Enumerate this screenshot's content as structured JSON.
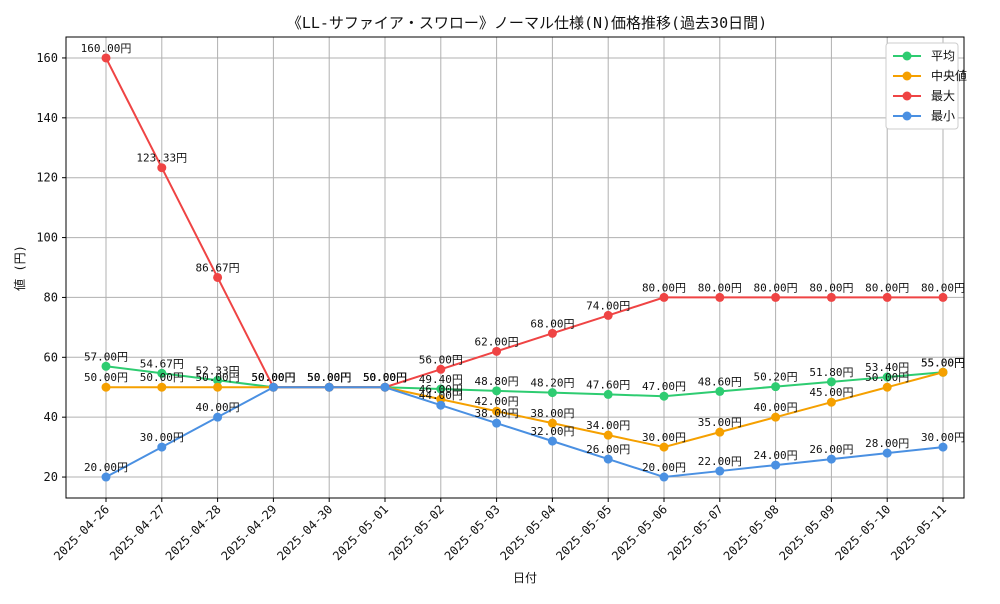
{
  "chart_data": {
    "type": "line",
    "title": "《LL-サファイア・スワロー》ノーマル仕様(N)価格推移(過去30日間)",
    "xlabel": "日付",
    "ylabel": "値 (円)",
    "ylim": [
      13,
      167
    ],
    "yticks": [
      20,
      40,
      60,
      80,
      100,
      120,
      140,
      160
    ],
    "grid": true,
    "legend_position": "top-right",
    "value_suffix": "円",
    "categories": [
      "2025-04-26",
      "2025-04-27",
      "2025-04-28",
      "2025-04-29",
      "2025-04-30",
      "2025-05-01",
      "2025-05-02",
      "2025-05-03",
      "2025-05-04",
      "2025-05-05",
      "2025-05-06",
      "2025-05-07",
      "2025-05-08",
      "2025-05-09",
      "2025-05-10",
      "2025-05-11"
    ],
    "series": [
      {
        "name": "平均",
        "color": "#2ecc71",
        "values": [
          57.0,
          54.67,
          52.33,
          50.0,
          50.0,
          50.0,
          49.4,
          48.8,
          48.2,
          47.6,
          47.0,
          48.6,
          50.2,
          51.8,
          53.4,
          55.0
        ]
      },
      {
        "name": "中央値",
        "color": "#f5a000",
        "values": [
          50.0,
          50.0,
          50.0,
          50.0,
          50.0,
          50.0,
          46.0,
          42.0,
          38.0,
          34.0,
          30.0,
          35.0,
          40.0,
          45.0,
          50.0,
          55.0
        ]
      },
      {
        "name": "最大",
        "color": "#ef4444",
        "values": [
          160.0,
          123.33,
          86.67,
          50.0,
          50.0,
          50.0,
          56.0,
          62.0,
          68.0,
          74.0,
          80.0,
          80.0,
          80.0,
          80.0,
          80.0,
          80.0
        ]
      },
      {
        "name": "最小",
        "color": "#4a90e2",
        "values": [
          20.0,
          30.0,
          40.0,
          50.0,
          50.0,
          50.0,
          44.0,
          38.0,
          32.0,
          26.0,
          20.0,
          22.0,
          24.0,
          26.0,
          28.0,
          30.0
        ]
      }
    ]
  }
}
